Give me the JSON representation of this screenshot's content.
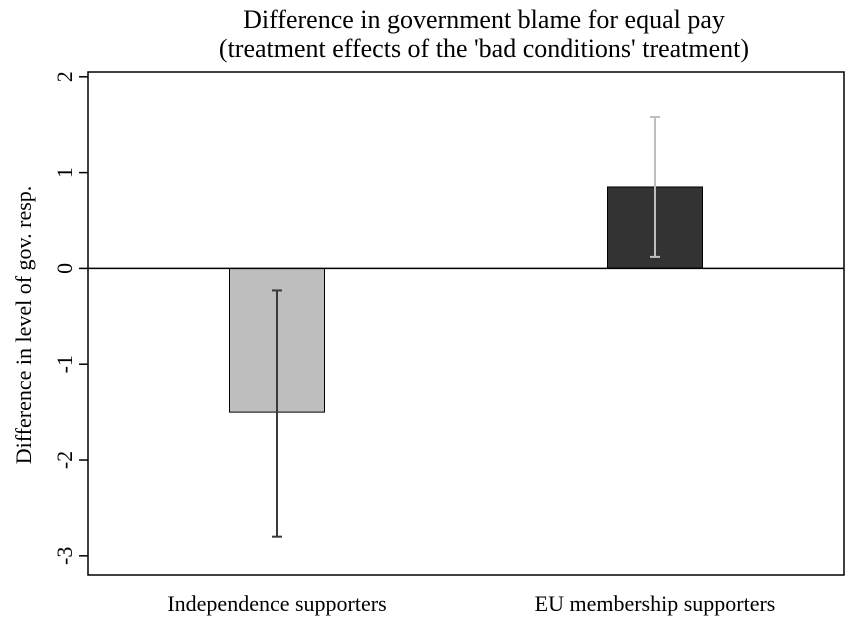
{
  "chart_data": {
    "type": "bar",
    "title": "Difference in government blame for equal pay",
    "subtitle": "(treatment effects of the 'bad conditions' treatment)",
    "ylabel": "Difference in level of gov. resp.",
    "xlabel": "",
    "ylim": [
      -3.2,
      2.05
    ],
    "yticks": [
      -3,
      -2,
      -1,
      0,
      1,
      2
    ],
    "categories": [
      "Independence supporters",
      "EU membership supporters"
    ],
    "values": [
      -1.5,
      0.85
    ],
    "ci_low": [
      -2.8,
      0.12
    ],
    "ci_high": [
      -0.23,
      1.58
    ],
    "bar_colors": [
      "#bebebe",
      "#333333"
    ],
    "error_bar_colors": [
      "#3a3a3a",
      "#bebebe"
    ],
    "grid": false,
    "legend": "none",
    "zero_line": true
  }
}
